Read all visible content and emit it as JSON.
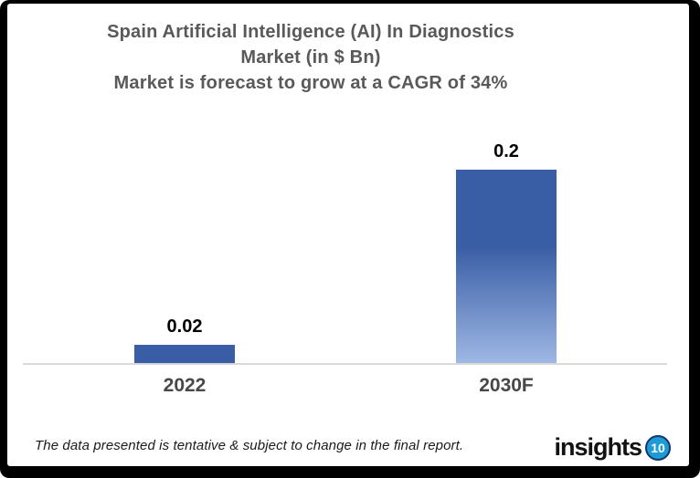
{
  "chart": {
    "title_lines": [
      "Spain Artificial Intelligence (AI) In Diagnostics",
      "Market  (in $ Bn)",
      "Market is forecast to grow at a CAGR of 34%"
    ]
  },
  "chart_data": {
    "type": "bar",
    "categories": [
      "2022",
      "2030F"
    ],
    "values": [
      0.02,
      0.2
    ],
    "value_labels": [
      "0.02",
      "0.2"
    ],
    "title": "Spain Artificial Intelligence (AI) In Diagnostics Market (in $ Bn)",
    "subtitle": "Market is forecast to grow at a CAGR of 34%",
    "cagr_percent": 34,
    "xlabel": "",
    "ylabel": "",
    "ylim": [
      0,
      0.22
    ],
    "grid": false,
    "legend": false,
    "bar_gradient_top": "#3A5EA6",
    "bar_gradient_bottom": "#9FB8E4",
    "axis_line_color": "#D9D9D9"
  },
  "footer": {
    "disclaimer": "The data presented is tentative & subject to change in the final report.",
    "logo": {
      "text": "insights",
      "badge": "10",
      "badge_color": "#1E9AD6",
      "badge_ring_color": "#14366B"
    }
  },
  "colors": {
    "title_text": "#595959",
    "category_label": "#484848",
    "value_label": "#000000",
    "background": "#FFFFFF",
    "frame": "#000000"
  }
}
